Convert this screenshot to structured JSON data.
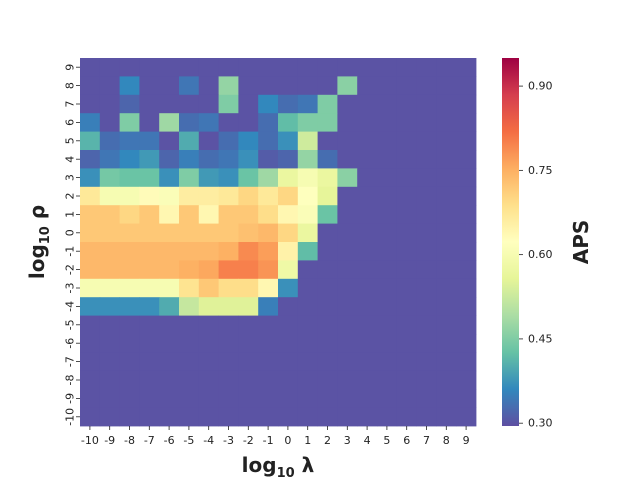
{
  "chart_data": {
    "type": "heatmap",
    "xlabel": "log₁₀ λ",
    "ylabel": "log₁₀ ρ",
    "colorbar_label": "APS",
    "colormap": "Spectral_r",
    "vmin": 0.295,
    "vmax": 0.95,
    "colorbar_ticks": [
      "0.30",
      "0.45",
      "0.60",
      "0.75",
      "0.90"
    ],
    "x_ticks": [
      "-10",
      "-9",
      "-8",
      "-7",
      "-6",
      "-5",
      "-4",
      "-3",
      "-2",
      "-1",
      "0",
      "1",
      "2",
      "3",
      "4",
      "5",
      "6",
      "7",
      "8",
      "9"
    ],
    "y_ticks": [
      "9",
      "8",
      "7",
      "6",
      "5",
      "4",
      "3",
      "2",
      "1",
      "0",
      "-1",
      "-2",
      "-3",
      "-4",
      "-5",
      "-6",
      "-7",
      "-8",
      "-9",
      "-10"
    ],
    "values": [
      [
        0.3,
        0.3,
        0.3,
        0.3,
        0.3,
        0.3,
        0.3,
        0.3,
        0.3,
        0.3,
        0.3,
        0.3,
        0.3,
        0.3,
        0.3,
        0.3,
        0.3,
        0.3,
        0.3,
        0.3
      ],
      [
        0.3,
        0.3,
        0.36,
        0.3,
        0.3,
        0.34,
        0.3,
        0.47,
        0.3,
        0.3,
        0.3,
        0.3,
        0.3,
        0.46,
        0.3,
        0.3,
        0.3,
        0.3,
        0.3,
        0.3
      ],
      [
        0.3,
        0.3,
        0.32,
        0.3,
        0.3,
        0.3,
        0.3,
        0.45,
        0.3,
        0.36,
        0.33,
        0.34,
        0.45,
        0.3,
        0.3,
        0.3,
        0.3,
        0.3,
        0.3,
        0.3
      ],
      [
        0.35,
        0.3,
        0.45,
        0.3,
        0.48,
        0.33,
        0.34,
        0.3,
        0.3,
        0.33,
        0.42,
        0.45,
        0.45,
        0.3,
        0.3,
        0.3,
        0.3,
        0.3,
        0.3,
        0.3
      ],
      [
        0.41,
        0.33,
        0.34,
        0.34,
        0.3,
        0.4,
        0.3,
        0.33,
        0.36,
        0.33,
        0.37,
        0.53,
        0.3,
        0.3,
        0.3,
        0.3,
        0.3,
        0.3,
        0.3,
        0.3
      ],
      [
        0.32,
        0.34,
        0.36,
        0.38,
        0.32,
        0.35,
        0.33,
        0.34,
        0.37,
        0.31,
        0.32,
        0.47,
        0.33,
        0.3,
        0.3,
        0.3,
        0.3,
        0.3,
        0.3,
        0.3
      ],
      [
        0.37,
        0.44,
        0.43,
        0.43,
        0.37,
        0.45,
        0.38,
        0.37,
        0.43,
        0.48,
        0.57,
        0.6,
        0.57,
        0.46,
        0.3,
        0.3,
        0.3,
        0.3,
        0.3,
        0.3
      ],
      [
        0.67,
        0.6,
        0.6,
        0.63,
        0.61,
        0.66,
        0.66,
        0.67,
        0.7,
        0.67,
        0.7,
        0.62,
        0.56,
        0.3,
        0.3,
        0.3,
        0.3,
        0.3,
        0.3,
        0.3
      ],
      [
        0.72,
        0.72,
        0.7,
        0.72,
        0.64,
        0.72,
        0.64,
        0.72,
        0.72,
        0.69,
        0.64,
        0.61,
        0.43,
        0.3,
        0.3,
        0.3,
        0.3,
        0.3,
        0.3,
        0.3
      ],
      [
        0.72,
        0.72,
        0.72,
        0.72,
        0.72,
        0.72,
        0.72,
        0.72,
        0.73,
        0.74,
        0.7,
        0.57,
        0.3,
        0.3,
        0.3,
        0.3,
        0.3,
        0.3,
        0.3,
        0.3
      ],
      [
        0.74,
        0.74,
        0.74,
        0.74,
        0.74,
        0.74,
        0.74,
        0.75,
        0.79,
        0.77,
        0.65,
        0.42,
        0.3,
        0.3,
        0.3,
        0.3,
        0.3,
        0.3,
        0.3,
        0.3
      ],
      [
        0.74,
        0.74,
        0.74,
        0.74,
        0.74,
        0.75,
        0.76,
        0.8,
        0.8,
        0.78,
        0.58,
        0.3,
        0.3,
        0.3,
        0.3,
        0.3,
        0.3,
        0.3,
        0.3,
        0.3
      ],
      [
        0.6,
        0.6,
        0.6,
        0.6,
        0.6,
        0.68,
        0.72,
        0.69,
        0.69,
        0.64,
        0.37,
        0.3,
        0.3,
        0.3,
        0.3,
        0.3,
        0.3,
        0.3,
        0.3,
        0.3
      ],
      [
        0.37,
        0.37,
        0.37,
        0.37,
        0.4,
        0.52,
        0.55,
        0.55,
        0.55,
        0.35,
        0.3,
        0.3,
        0.3,
        0.3,
        0.3,
        0.3,
        0.3,
        0.3,
        0.3,
        0.3
      ],
      [
        0.3,
        0.3,
        0.3,
        0.3,
        0.3,
        0.3,
        0.3,
        0.3,
        0.3,
        0.3,
        0.3,
        0.3,
        0.3,
        0.3,
        0.3,
        0.3,
        0.3,
        0.3,
        0.3,
        0.3
      ],
      [
        0.3,
        0.3,
        0.3,
        0.3,
        0.3,
        0.3,
        0.3,
        0.3,
        0.3,
        0.3,
        0.3,
        0.3,
        0.3,
        0.3,
        0.3,
        0.3,
        0.3,
        0.3,
        0.3,
        0.3
      ],
      [
        0.3,
        0.3,
        0.3,
        0.3,
        0.3,
        0.3,
        0.3,
        0.3,
        0.3,
        0.3,
        0.3,
        0.3,
        0.3,
        0.3,
        0.3,
        0.3,
        0.3,
        0.3,
        0.3,
        0.3
      ],
      [
        0.3,
        0.3,
        0.3,
        0.3,
        0.3,
        0.3,
        0.3,
        0.3,
        0.3,
        0.3,
        0.3,
        0.3,
        0.3,
        0.3,
        0.3,
        0.3,
        0.3,
        0.3,
        0.3,
        0.3
      ],
      [
        0.3,
        0.3,
        0.3,
        0.3,
        0.3,
        0.3,
        0.3,
        0.3,
        0.3,
        0.3,
        0.3,
        0.3,
        0.3,
        0.3,
        0.3,
        0.3,
        0.3,
        0.3,
        0.3,
        0.3
      ],
      [
        0.3,
        0.3,
        0.3,
        0.3,
        0.3,
        0.3,
        0.3,
        0.3,
        0.3,
        0.3,
        0.3,
        0.3,
        0.3,
        0.3,
        0.3,
        0.3,
        0.3,
        0.3,
        0.3,
        0.3
      ]
    ]
  }
}
